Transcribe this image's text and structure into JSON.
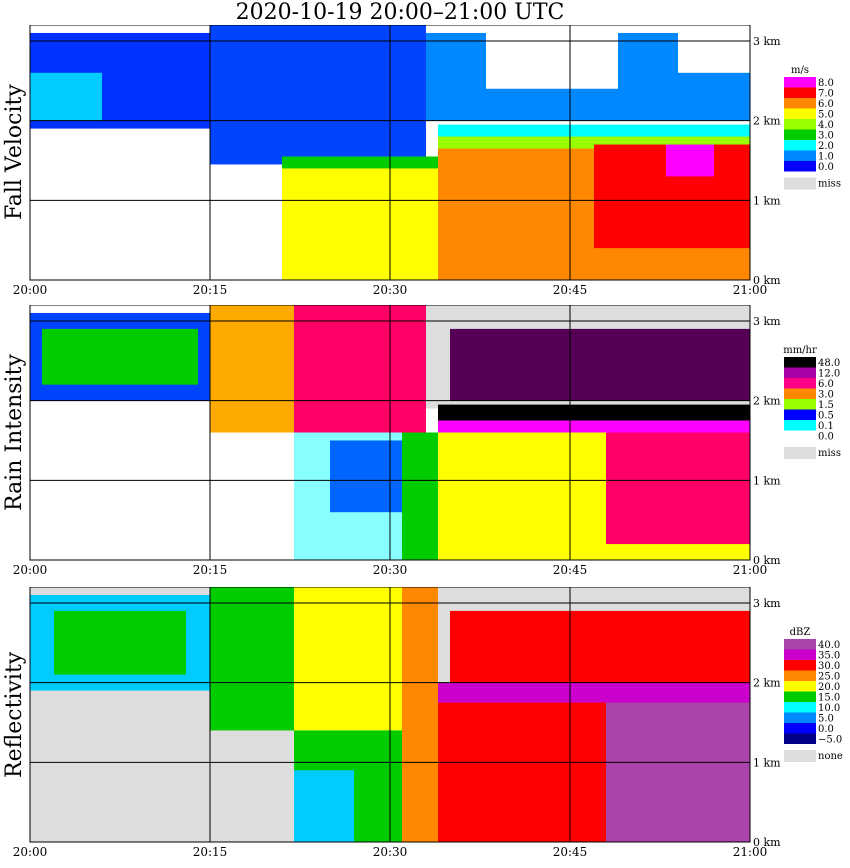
{
  "title": "2020-10-19   20:00–21:00 UTC",
  "chart_data": [
    {
      "type": "heatmap",
      "panel_label": "Fall Velocity",
      "x_ticks": [
        "20:00",
        "20:15",
        "20:30",
        "20:45",
        "21:00"
      ],
      "x_range": [
        0,
        60
      ],
      "y_ticks": [
        "0 km",
        "1 km",
        "2 km",
        "3 km"
      ],
      "y_range": [
        0,
        3.2
      ],
      "legend_unit": "m/s",
      "legend": [
        {
          "label": "8.0",
          "color": "#ff00ff"
        },
        {
          "label": "7.0",
          "color": "#ff0000"
        },
        {
          "label": "6.0",
          "color": "#ff8800"
        },
        {
          "label": "5.0",
          "color": "#ffff00"
        },
        {
          "label": "4.0",
          "color": "#99ff00"
        },
        {
          "label": "3.0",
          "color": "#00cc00"
        },
        {
          "label": "2.0",
          "color": "#00ffff"
        },
        {
          "label": "1.0",
          "color": "#0088ff"
        },
        {
          "label": "0.0",
          "color": "#0000ff"
        },
        {
          "label": "miss",
          "color": "#dddddd"
        }
      ],
      "regions": [
        {
          "t0": 0,
          "t1": 15,
          "h0": 1.9,
          "h1": 3.1,
          "color": "#0033ff"
        },
        {
          "t0": 0,
          "t1": 6,
          "h0": 2.0,
          "h1": 2.6,
          "color": "#00ccff"
        },
        {
          "t0": 15,
          "t1": 33,
          "h0": 1.45,
          "h1": 3.2,
          "color": "#0044ff"
        },
        {
          "t0": 33,
          "t1": 60,
          "h0": 2.0,
          "h1": 3.1,
          "color": "#0088ff"
        },
        {
          "t0": 38,
          "t1": 49,
          "h0": 2.4,
          "h1": 3.2,
          "color": "#ffffff"
        },
        {
          "t0": 54,
          "t1": 60,
          "h0": 2.6,
          "h1": 3.2,
          "color": "#ffffff"
        },
        {
          "t0": 21,
          "t1": 34,
          "h0": 0,
          "h1": 1.45,
          "color": "#ffff00"
        },
        {
          "t0": 21,
          "t1": 34,
          "h0": 1.4,
          "h1": 1.55,
          "color": "#00cc00"
        },
        {
          "t0": 34,
          "t1": 60,
          "h0": 1.75,
          "h1": 1.95,
          "color": "#00ffff"
        },
        {
          "t0": 34,
          "t1": 60,
          "h0": 1.65,
          "h1": 1.8,
          "color": "#99ff00"
        },
        {
          "t0": 34,
          "t1": 60,
          "h0": 0,
          "h1": 1.65,
          "color": "#ff8800"
        },
        {
          "t0": 47,
          "t1": 60,
          "h0": 0.4,
          "h1": 1.7,
          "color": "#ff0000"
        },
        {
          "t0": 53,
          "t1": 57,
          "h0": 1.3,
          "h1": 1.7,
          "color": "#ff00ff"
        }
      ]
    },
    {
      "type": "heatmap",
      "panel_label": "Rain Intensity",
      "x_ticks": [
        "20:00",
        "20:15",
        "20:30",
        "20:45",
        "21:00"
      ],
      "x_range": [
        0,
        60
      ],
      "y_ticks": [
        "0 km",
        "1 km",
        "2 km",
        "3 km"
      ],
      "y_range": [
        0,
        3.2
      ],
      "legend_unit": "mm/hr",
      "legend": [
        {
          "label": "48.0",
          "color": "#000000"
        },
        {
          "label": "12.0",
          "color": "#aa00aa"
        },
        {
          "label": "6.0",
          "color": "#ff0088"
        },
        {
          "label": "3.0",
          "color": "#ff8800"
        },
        {
          "label": "1.5",
          "color": "#99ff00"
        },
        {
          "label": "0.5",
          "color": "#0000ff"
        },
        {
          "label": "0.1",
          "color": "#00ffff"
        },
        {
          "label": "0.0",
          "color": "#ffffff"
        },
        {
          "label": "miss",
          "color": "#dddddd"
        }
      ],
      "regions": [
        {
          "t0": 0,
          "t1": 15,
          "h0": 2.0,
          "h1": 3.1,
          "color": "#0044ff"
        },
        {
          "t0": 1,
          "t1": 14,
          "h0": 2.2,
          "h1": 2.9,
          "color": "#00cc00"
        },
        {
          "t0": 15,
          "t1": 22,
          "h0": 1.6,
          "h1": 3.2,
          "color": "#ffaa00"
        },
        {
          "t0": 22,
          "t1": 33,
          "h0": 1.6,
          "h1": 3.2,
          "color": "#ff0066"
        },
        {
          "t0": 33,
          "t1": 60,
          "h0": 1.9,
          "h1": 3.2,
          "color": "#dddddd"
        },
        {
          "t0": 35,
          "t1": 60,
          "h0": 2.0,
          "h1": 2.9,
          "color": "#550055"
        },
        {
          "t0": 34,
          "t1": 60,
          "h0": 1.75,
          "h1": 1.95,
          "color": "#000000"
        },
        {
          "t0": 34,
          "t1": 60,
          "h0": 1.6,
          "h1": 1.75,
          "color": "#ff00ff"
        },
        {
          "t0": 22,
          "t1": 31,
          "h0": 0,
          "h1": 1.6,
          "color": "#88ffff"
        },
        {
          "t0": 25,
          "t1": 31,
          "h0": 0.6,
          "h1": 1.5,
          "color": "#0066ff"
        },
        {
          "t0": 31,
          "t1": 34,
          "h0": 0,
          "h1": 1.6,
          "color": "#00cc00"
        },
        {
          "t0": 34,
          "t1": 60,
          "h0": 0,
          "h1": 1.6,
          "color": "#ffff00"
        },
        {
          "t0": 48,
          "t1": 60,
          "h0": 0.2,
          "h1": 1.6,
          "color": "#ff0066"
        }
      ]
    },
    {
      "type": "heatmap",
      "panel_label": "Reflectivity",
      "x_ticks": [
        "20:00",
        "20:15",
        "20:30",
        "20:45",
        "21:00"
      ],
      "x_range": [
        0,
        60
      ],
      "y_ticks": [
        "0 km",
        "1 km",
        "2 km",
        "3 km"
      ],
      "y_range": [
        0,
        3.2
      ],
      "legend_unit": "dBZ",
      "legend": [
        {
          "label": "40.0",
          "color": "#aa44aa"
        },
        {
          "label": "35.0",
          "color": "#cc00cc"
        },
        {
          "label": "30.0",
          "color": "#ff0000"
        },
        {
          "label": "25.0",
          "color": "#ff8800"
        },
        {
          "label": "20.0",
          "color": "#ffff00"
        },
        {
          "label": "15.0",
          "color": "#00cc00"
        },
        {
          "label": "10.0",
          "color": "#00ffff"
        },
        {
          "label": "5.0",
          "color": "#0088ff"
        },
        {
          "label": "0.0",
          "color": "#0000ff"
        },
        {
          "label": "−5.0",
          "color": "#000088"
        },
        {
          "label": "none",
          "color": "#dddddd"
        }
      ],
      "regions": [
        {
          "t0": 0,
          "t1": 60,
          "h0": 0,
          "h1": 3.2,
          "color": "#dddddd"
        },
        {
          "t0": 0,
          "t1": 15,
          "h0": 1.9,
          "h1": 3.1,
          "color": "#00ccff"
        },
        {
          "t0": 2,
          "t1": 13,
          "h0": 2.1,
          "h1": 2.9,
          "color": "#00cc00"
        },
        {
          "t0": 15,
          "t1": 22,
          "h0": 1.4,
          "h1": 3.2,
          "color": "#00cc00"
        },
        {
          "t0": 22,
          "t1": 31,
          "h0": 1.4,
          "h1": 3.2,
          "color": "#ffff00"
        },
        {
          "t0": 31,
          "t1": 34,
          "h0": 0,
          "h1": 3.2,
          "color": "#ff8800"
        },
        {
          "t0": 22,
          "t1": 31,
          "h0": 0,
          "h1": 1.4,
          "color": "#00cc00"
        },
        {
          "t0": 22,
          "t1": 27,
          "h0": 0,
          "h1": 0.9,
          "color": "#00ccff"
        },
        {
          "t0": 34,
          "t1": 60,
          "h0": 1.9,
          "h1": 3.2,
          "color": "#dddddd"
        },
        {
          "t0": 35,
          "t1": 60,
          "h0": 2.0,
          "h1": 2.9,
          "color": "#ff0000"
        },
        {
          "t0": 34,
          "t1": 60,
          "h0": 1.75,
          "h1": 2.0,
          "color": "#cc00cc"
        },
        {
          "t0": 34,
          "t1": 60,
          "h0": 0,
          "h1": 1.75,
          "color": "#ff0000"
        },
        {
          "t0": 48,
          "t1": 60,
          "h0": 0,
          "h1": 1.75,
          "color": "#aa44aa"
        }
      ]
    }
  ]
}
